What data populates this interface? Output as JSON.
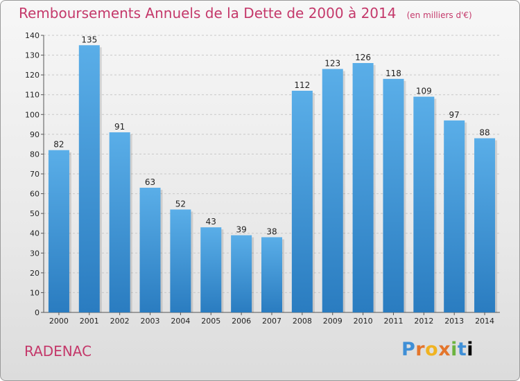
{
  "page": {
    "title": "Remboursements Annuels de la Dette de 2000 à 2014",
    "subtitle": "(en milliers d'€)",
    "place": "RADENAC",
    "logo_text": "Proxiti"
  },
  "chart_data": {
    "type": "bar",
    "title": "Remboursements Annuels de la Dette de 2000 à 2014",
    "subtitle": "(en milliers d'€)",
    "xlabel": "",
    "ylabel": "",
    "categories": [
      "2000",
      "2001",
      "2002",
      "2003",
      "2004",
      "2005",
      "2006",
      "2007",
      "2008",
      "2009",
      "2010",
      "2011",
      "2012",
      "2013",
      "2014"
    ],
    "values": [
      82,
      135,
      91,
      63,
      52,
      43,
      39,
      38,
      112,
      123,
      126,
      118,
      109,
      97,
      88
    ],
    "ylim": [
      0,
      140
    ],
    "yticks": [
      0,
      10,
      20,
      30,
      40,
      50,
      60,
      70,
      80,
      90,
      100,
      110,
      120,
      130,
      140
    ],
    "grid": true,
    "data_labels": true,
    "colors": {
      "bar_light": "#5aaee8",
      "bar_dark": "#2a7cc0",
      "text_accent": "#c4386a"
    }
  }
}
